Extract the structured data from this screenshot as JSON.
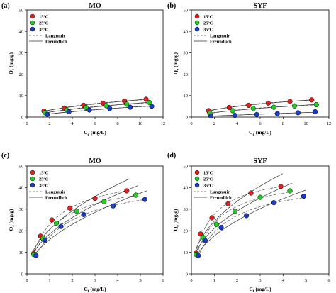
{
  "chart_data": [
    {
      "type": "scatter",
      "panel_label": "(a)",
      "title": "MO",
      "xlabel": "Ce (mg/L)",
      "ylabel": "Qe (mg/g)",
      "xlim": [
        0,
        12
      ],
      "ylim": [
        0,
        50
      ],
      "xticks": [
        0,
        2,
        4,
        6,
        8,
        10,
        12
      ],
      "yticks": [
        0,
        10,
        20,
        30,
        40,
        50
      ],
      "legend_position": "top-left",
      "series": [
        {
          "name": "15ºC",
          "color": "#e02020",
          "x": [
            1.5,
            3.3,
            5.0,
            6.7,
            8.6,
            10.5
          ],
          "y": [
            2.8,
            4.2,
            5.5,
            6.5,
            7.5,
            8.3
          ]
        },
        {
          "name": "25ºC",
          "color": "#22cc22",
          "x": [
            1.6,
            3.5,
            5.2,
            7.0,
            8.8,
            10.8
          ],
          "y": [
            2.0,
            3.3,
            4.5,
            5.3,
            6.0,
            6.8
          ]
        },
        {
          "name": "35ºC",
          "color": "#1a3ccc",
          "x": [
            1.8,
            3.7,
            5.5,
            7.3,
            9.1,
            11.0
          ],
          "y": [
            1.3,
            2.5,
            3.3,
            4.0,
            4.6,
            5.0
          ]
        }
      ],
      "fit_lines": [
        "Langmuir",
        "Freundlich"
      ]
    },
    {
      "type": "scatter",
      "panel_label": "(b)",
      "title": "SYF",
      "xlabel": "Ce (mg/L)",
      "ylabel": "Qe (mg/g)",
      "xlim": [
        0,
        12
      ],
      "ylim": [
        0,
        50
      ],
      "xticks": [
        0,
        2,
        4,
        6,
        8,
        10,
        12
      ],
      "yticks": [
        0,
        10,
        20,
        30,
        40,
        50
      ],
      "legend_position": "top-left",
      "series": [
        {
          "name": "15ºC",
          "color": "#e02020",
          "x": [
            1.5,
            3.3,
            5.0,
            6.7,
            8.6,
            10.5
          ],
          "y": [
            3.0,
            4.5,
            5.5,
            6.5,
            7.3,
            8.0
          ]
        },
        {
          "name": "25ºC",
          "color": "#22cc22",
          "x": [
            1.6,
            3.6,
            5.4,
            7.2,
            9.0,
            10.9
          ],
          "y": [
            1.8,
            3.0,
            4.0,
            4.6,
            5.2,
            5.8
          ]
        },
        {
          "name": "35ºC",
          "color": "#1a3ccc",
          "x": [
            1.7,
            3.8,
            5.7,
            7.5,
            9.3,
            10.8
          ],
          "y": [
            0.5,
            0.8,
            1.2,
            1.6,
            2.0,
            2.5
          ]
        }
      ],
      "fit_lines": [
        "Langmuir",
        "Freundlich"
      ]
    },
    {
      "type": "scatter",
      "panel_label": "(c)",
      "title": "MO",
      "xlabel": "Cf (mg/L)",
      "ylabel": "Qe (mg/g)",
      "xlim": [
        0,
        6
      ],
      "ylim": [
        0,
        50
      ],
      "xticks": [
        0,
        1,
        2,
        3,
        4,
        5,
        6
      ],
      "yticks": [
        0,
        10,
        20,
        30,
        40,
        50
      ],
      "legend_position": "top-left",
      "series": [
        {
          "name": "15ºC",
          "color": "#e02020",
          "x": [
            0.3,
            0.6,
            1.1,
            1.9,
            3.0,
            4.4
          ],
          "y": [
            9.5,
            17.5,
            25.0,
            30.5,
            35.0,
            38.5
          ]
        },
        {
          "name": "25ºC",
          "color": "#22cc22",
          "x": [
            0.3,
            0.7,
            1.3,
            2.2,
            3.4,
            4.8
          ],
          "y": [
            9.0,
            16.5,
            23.5,
            29.0,
            33.5,
            36.5
          ]
        },
        {
          "name": "35ºC",
          "color": "#1a3ccc",
          "x": [
            0.4,
            0.8,
            1.5,
            2.5,
            3.8,
            5.2
          ],
          "y": [
            8.5,
            15.5,
            22.0,
            27.5,
            31.5,
            34.5
          ]
        }
      ],
      "fit_lines": [
        "Langmuir",
        "Freundlich"
      ]
    },
    {
      "type": "scatter",
      "panel_label": "(d)",
      "title": "SYF",
      "xlabel": "Cf (mg/L)",
      "ylabel": "Qe (mg/g)",
      "xlim": [
        0,
        6
      ],
      "ylim": [
        0,
        50
      ],
      "xticks": [
        0,
        1,
        2,
        3,
        4,
        5,
        6
      ],
      "yticks": [
        0,
        10,
        20,
        30,
        40,
        50
      ],
      "legend_position": "top-left",
      "series": [
        {
          "name": "15ºC",
          "color": "#e02020",
          "x": [
            0.2,
            0.4,
            0.9,
            1.6,
            2.6,
            3.9
          ],
          "y": [
            9.5,
            18.5,
            26.0,
            32.5,
            37.5,
            40.5
          ]
        },
        {
          "name": "25ºC",
          "color": "#22cc22",
          "x": [
            0.2,
            0.5,
            1.1,
            1.9,
            3.0,
            4.3
          ],
          "y": [
            9.0,
            17.0,
            23.0,
            29.0,
            35.5,
            38.5
          ]
        },
        {
          "name": "35ºC",
          "color": "#1a3ccc",
          "x": [
            0.3,
            0.6,
            1.3,
            2.4,
            3.6,
            4.9
          ],
          "y": [
            8.5,
            15.5,
            21.5,
            27.0,
            33.0,
            36.0
          ]
        }
      ],
      "fit_lines": [
        "Langmuir",
        "Freundlich"
      ]
    }
  ]
}
